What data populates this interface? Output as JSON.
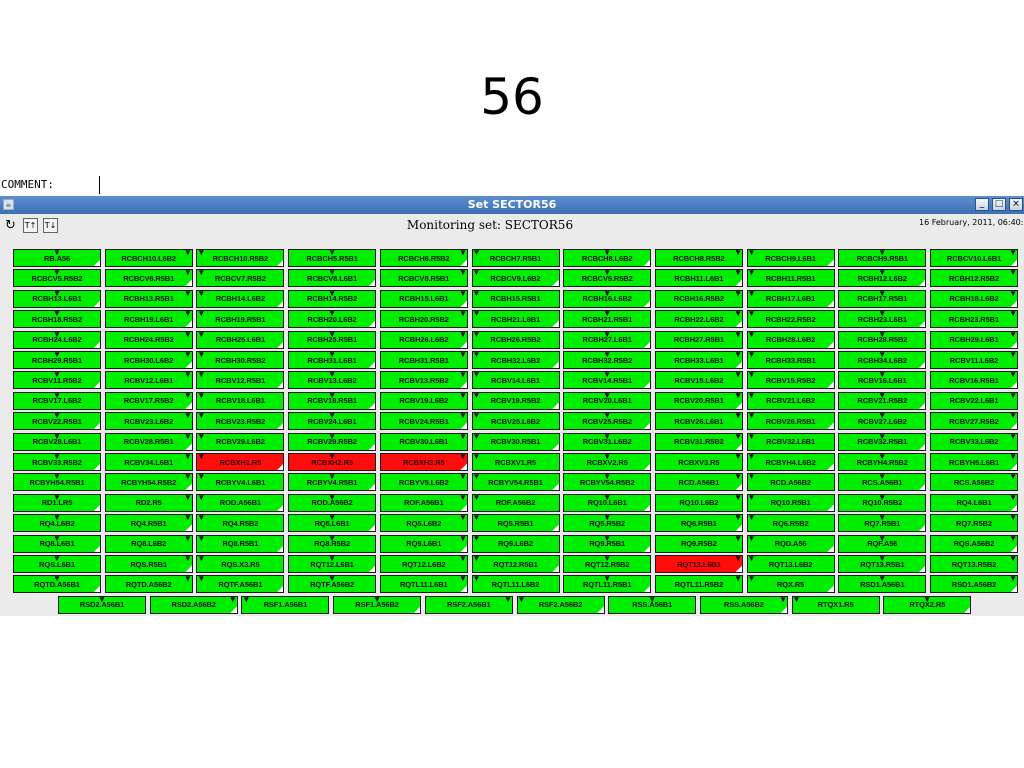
{
  "slide": {
    "title": "56"
  },
  "comment": {
    "label": "COMMENT:",
    "value": ""
  },
  "window": {
    "title": "Set SECTOR56",
    "controls": {
      "minimize_glyph": "_",
      "maximize_glyph": "□",
      "close_glyph": "×"
    },
    "app_icon_glyph": "☕"
  },
  "toolbar": {
    "refresh_glyph": "↻",
    "sort_asc_glyph": "T↑",
    "sort_desc_glyph": "T↓",
    "monitor_title": "Monitoring set: SECTOR56",
    "date": "16 February, 2011, 06:40:16"
  },
  "colors": {
    "ok": "#00ee00",
    "fault": "#ff0d0d"
  },
  "markers": {
    "marker_glyph": "▼",
    "corner_glyph": "◢"
  },
  "grid": {
    "rows": [
      [
        "RB.A56",
        "RCBCH10.L6B2",
        "RCBCH10.R5B2",
        "RCBCH5.R5B1",
        "RCBCH6.R5B2",
        "RCBCH7.R5B1",
        "RCBCH8.L6B2",
        "RCBCH8.R5B2",
        "RCBCH9.L6B1",
        "RCBCH9.R5B1",
        "RCBCV10.L6B1"
      ],
      [
        "RCBCV5.R5B2",
        "RCBCV6.R5B1",
        "RCBCV7.R5B2",
        "RCBCV8.L6B1",
        "RCBCV8.R5B1",
        "RCBCV9.L6B2",
        "RCBCV9.R5B2",
        "RCBH11.L6B1",
        "RCBH11.R5B1",
        "RCBH12.L6B2",
        "RCBH12.R5B2"
      ],
      [
        "RCBH13.L6B1",
        "RCBH13.R5B1",
        "RCBH14.L6B2",
        "RCBH14.R5B2",
        "RCBH15.L6B1",
        "RCBH15.R5B1",
        "RCBH16.L6B2",
        "RCBH16.R5B2",
        "RCBH17.L6B1",
        "RCBH17.R5B1",
        "RCBH18.L6B2"
      ],
      [
        "RCBH18.R5B2",
        "RCBH19.L6B1",
        "RCBH19.R5B1",
        "RCBH20.L6B2",
        "RCBH20.R5B2",
        "RCBH21.L6B1",
        "RCBH21.R5B1",
        "RCBH22.L6B2",
        "RCBH22.R5B2",
        "RCBH23.L6B1",
        "RCBH23.R5B1"
      ],
      [
        "RCBH24.L6B2",
        "RCBH24.R5B2",
        "RCBH25.L6B1",
        "RCBH25.R5B1",
        "RCBH26.L6B2",
        "RCBH26.R5B2",
        "RCBH27.L6B1",
        "RCBH27.R5B1",
        "RCBH28.L6B2",
        "RCBH28.R5B2",
        "RCBH29.L6B1"
      ],
      [
        "RCBH29.R5B1",
        "RCBH30.L6B2",
        "RCBH30.R5B2",
        "RCBH31.L6B1",
        "RCBH31.R5B1",
        "RCBH32.L6B2",
        "RCBH32.R5B2",
        "RCBH33.L6B1",
        "RCBH33.R5B1",
        "RCBH34.L6B2",
        "RCBV11.L6B2"
      ],
      [
        "RCBV11.R5B2",
        "RCBV12.L6B1",
        "RCBV12.R5B1",
        "RCBV13.L6B2",
        "RCBV13.R5B2",
        "RCBV14.L6B1",
        "RCBV14.R5B1",
        "RCBV15.L6B2",
        "RCBV15.R5B2",
        "RCBV16.L6B1",
        "RCBV16.R5B1"
      ],
      [
        "RCBV17.L6B2",
        "RCBV17.R5B2",
        "RCBV18.L6B1",
        "RCBV18.R5B1",
        "RCBV19.L6B2",
        "RCBV19.R5B2",
        "RCBV20.L6B1",
        "RCBV20.R5B1",
        "RCBV21.L6B2",
        "RCBV21.R5B2",
        "RCBV22.L6B1"
      ],
      [
        "RCBV22.R5B1",
        "RCBV23.L6B2",
        "RCBV23.R5B2",
        "RCBV24.L6B1",
        "RCBV24.R5B1",
        "RCBV25.L6B2",
        "RCBV25.R5B2",
        "RCBV26.L6B1",
        "RCBV26.R5B1",
        "RCBV27.L6B2",
        "RCBV27.R5B2"
      ],
      [
        "RCBV28.L6B1",
        "RCBV28.R5B1",
        "RCBV29.L6B2",
        "RCBV29.R5B2",
        "RCBV30.L6B1",
        "RCBV30.R5B1",
        "RCBV31.L6B2",
        "RCBV31.R5B2",
        "RCBV32.L6B1",
        "RCBV32.R5B1",
        "RCBV33.L6B2"
      ],
      [
        "RCBV33.R5B2",
        "RCBV34.L6B1",
        "RCBXH1.R5",
        "RCBXH2.R5",
        "RCBXH3.R5",
        "RCBXV1.R5",
        "RCBXV2.R5",
        "RCBXV3.R5",
        "RCBYH4.L6B2",
        "RCBYH4.R5B2",
        "RCBYH5.L6B1"
      ],
      [
        "RCBYH54.R5B1",
        "RCBYH54.R5B2",
        "RCBYV4.L6B1",
        "RCBYV4.R5B1",
        "RCBYV5.L6B2",
        "RCBYV54.R5B1",
        "RCBYV54.R5B2",
        "RCD.A56B1",
        "RCD.A56B2",
        "RCS.A56B1",
        "RCS.A56B2"
      ],
      [
        "RD1.LR5",
        "RD2.R5",
        "ROD.A56B1",
        "ROD.A56B2",
        "ROF.A56B1",
        "ROF.A56B2",
        "RQ10.L6B1",
        "RQ10.L6B2",
        "RQ10.R5B1",
        "RQ10.R5B2",
        "RQ4.L6B1"
      ],
      [
        "RQ4.L6B2",
        "RQ4.R5B1",
        "RQ4.R5B2",
        "RQ5.L6B1",
        "RQ5.L6B2",
        "RQ5.R5B1",
        "RQ5.R5B2",
        "RQ6.R5B1",
        "RQ6.R5B2",
        "RQ7.R5B1",
        "RQ7.R5B2"
      ],
      [
        "RQ8.L6B1",
        "RQ8.L6B2",
        "RQ8.R5B1",
        "RQ8.R5B2",
        "RQ9.L6B1",
        "RQ9.L6B2",
        "RQ9.R5B1",
        "RQ9.R5B2",
        "RQD.A56",
        "RQF.A56",
        "RQS.A56B2"
      ],
      [
        "RQS.L6B1",
        "RQS.R5B1",
        "RQS.X3.R5",
        "RQT12.L6B1",
        "RQT12.L6B2",
        "RQT12.R5B1",
        "RQT12.R5B2",
        "RQT13.L6B1",
        "RQT13.L6B2",
        "RQT13.R5B1",
        "RQT13.R5B2"
      ],
      [
        "RQTD.A56B1",
        "RQTD.A56B2",
        "RQTF.A56B1",
        "RQTF.A56B2",
        "RQTL11.L6B1",
        "RQTL11.L6B2",
        "RQTL11.R5B1",
        "RQTL11.R5B2",
        "RQX.R5",
        "RSD1.A56B1",
        "RSD1.A56B2"
      ],
      [
        "RSD2.A56B1",
        "RSD2.A56B2",
        "RSF1.A56B1",
        "RSF1.A56B2",
        "RSF2.A56B1",
        "RSF2.A56B2",
        "RSS.A56B1",
        "RSS.A56B2",
        "RTQX1.R5",
        "RTQX2.R5"
      ]
    ],
    "fault_cells": [
      "RCBXH1.R5",
      "RCBXH2.R5",
      "RCBXH3.R5",
      "RQT13.L6B1"
    ]
  }
}
